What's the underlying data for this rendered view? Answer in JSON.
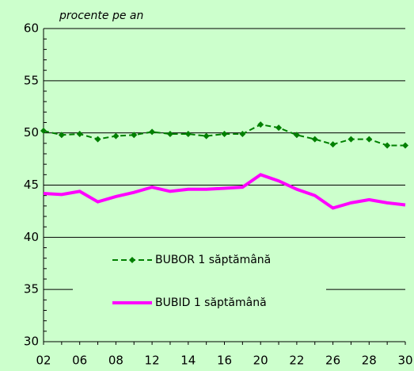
{
  "chart_data": {
    "type": "line",
    "y_label": "procente pe an",
    "categories": [
      "02",
      null,
      "06",
      null,
      "08",
      null,
      "12",
      null,
      "14",
      null,
      "16",
      null,
      "20",
      null,
      "22",
      null,
      "26",
      null,
      "28",
      null,
      "30"
    ],
    "series": [
      {
        "name": "BUBOR 1 săptămână",
        "color": "#008000",
        "marker": "diamond",
        "dashed": true,
        "values": [
          50.2,
          49.8,
          49.9,
          49.4,
          49.7,
          49.8,
          50.1,
          49.9,
          49.9,
          49.7,
          49.9,
          49.9,
          50.8,
          50.5,
          49.8,
          49.4,
          48.9,
          49.4,
          49.4,
          48.8,
          48.8
        ]
      },
      {
        "name": "BUBID 1 săptămână",
        "color": "#ff00ff",
        "marker": "none",
        "dashed": false,
        "values": [
          44.2,
          44.1,
          44.4,
          43.4,
          43.9,
          44.3,
          44.8,
          44.4,
          44.6,
          44.6,
          44.7,
          44.8,
          46.0,
          45.4,
          44.6,
          44.0,
          42.8,
          43.3,
          43.6,
          43.3,
          43.1
        ]
      }
    ],
    "ylim": [
      30,
      60
    ],
    "yticks": [
      30,
      35,
      40,
      45,
      50,
      55,
      60
    ],
    "grid": true
  }
}
